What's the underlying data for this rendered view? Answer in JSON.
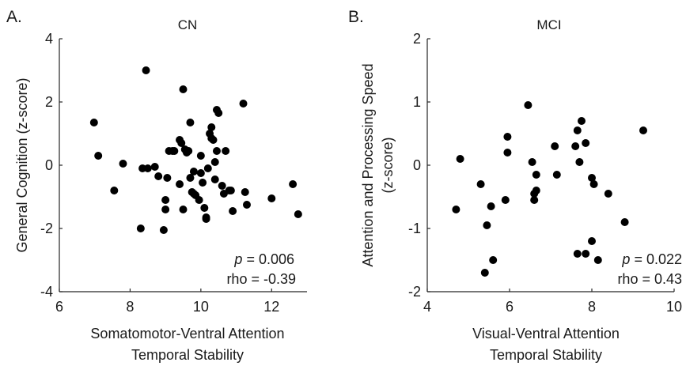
{
  "chart_data": [
    {
      "type": "scatter",
      "panel_label": "A.",
      "title": "CN",
      "xlabel_lines": [
        "Somatomotor-Ventral Attention",
        "Temporal Stability"
      ],
      "ylabel_lines": [
        "General Cognition (z-score)"
      ],
      "xlim": [
        6,
        13
      ],
      "ylim": [
        -4,
        4
      ],
      "xticks": [
        6,
        8,
        10,
        12
      ],
      "yticks": [
        -4,
        -2,
        0,
        2,
        4
      ],
      "xtick_labels": [
        "6",
        "8",
        "10",
        "12"
      ],
      "ytick_labels": [
        "-4",
        "-2",
        "0",
        "2",
        "4"
      ],
      "stat_p_symbol": "p",
      "stat_p_value": " = 0.006",
      "stat_rho": "rho = -0.39",
      "grid": false,
      "x": [
        6.98,
        7.1,
        7.55,
        7.8,
        8.3,
        8.35,
        8.45,
        8.5,
        8.7,
        8.8,
        8.95,
        9.0,
        9.0,
        9.05,
        9.1,
        9.2,
        9.25,
        9.4,
        9.4,
        9.45,
        9.5,
        9.5,
        9.55,
        9.6,
        9.65,
        9.7,
        9.7,
        9.75,
        9.8,
        9.8,
        9.85,
        9.95,
        10.0,
        10.0,
        10.05,
        10.1,
        10.15,
        10.15,
        10.2,
        10.25,
        10.3,
        10.3,
        10.35,
        10.4,
        10.4,
        10.45,
        10.45,
        10.5,
        10.6,
        10.65,
        10.7,
        10.8,
        10.85,
        10.9,
        11.2,
        11.25,
        11.3,
        12.0,
        12.6,
        12.75
      ],
      "y": [
        1.35,
        0.3,
        -0.8,
        0.05,
        -2.0,
        -0.1,
        3.0,
        -0.1,
        -0.05,
        -0.35,
        -2.05,
        -1.4,
        -1.1,
        -0.4,
        0.45,
        0.45,
        0.45,
        0.8,
        -0.6,
        0.7,
        2.4,
        -1.4,
        0.5,
        0.4,
        0.45,
        1.35,
        -0.4,
        -0.85,
        -0.9,
        -0.2,
        -0.95,
        -1.1,
        -0.25,
        0.3,
        -0.55,
        -1.35,
        -1.7,
        -1.65,
        -0.1,
        1.0,
        0.85,
        1.2,
        0.8,
        -0.45,
        0.1,
        1.75,
        0.45,
        1.65,
        -0.65,
        -0.9,
        0.45,
        -0.8,
        -0.8,
        -1.45,
        1.95,
        -0.85,
        -1.25,
        -1.05,
        -0.6,
        -1.55
      ]
    },
    {
      "type": "scatter",
      "panel_label": "B.",
      "title": "MCI",
      "xlabel_lines": [
        "Visual-Ventral Attention",
        "Temporal Stability"
      ],
      "ylabel_lines": [
        "Attention and Processing Speed",
        "(z-score)"
      ],
      "xlim": [
        4,
        10
      ],
      "ylim": [
        -2,
        2
      ],
      "xticks": [
        4,
        6,
        8,
        10
      ],
      "yticks": [
        -2,
        -1,
        0,
        1,
        2
      ],
      "xtick_labels": [
        "4",
        "6",
        "8",
        "10"
      ],
      "ytick_labels": [
        "-2",
        "-1",
        "0",
        "1",
        "2"
      ],
      "stat_p_symbol": "p",
      "stat_p_value": " = 0.022",
      "stat_rho": "rho = 0.43",
      "grid": false,
      "x": [
        4.7,
        4.8,
        5.3,
        5.4,
        5.45,
        5.55,
        5.6,
        5.9,
        5.95,
        5.95,
        6.45,
        6.55,
        6.6,
        6.6,
        6.65,
        6.65,
        7.1,
        7.15,
        7.6,
        7.65,
        7.65,
        7.7,
        7.75,
        7.85,
        7.85,
        8.0,
        8.0,
        8.05,
        8.15,
        8.4,
        8.8,
        9.25
      ],
      "y": [
        -0.7,
        0.1,
        -0.3,
        -1.7,
        -0.95,
        -0.65,
        -1.5,
        -0.55,
        0.2,
        0.45,
        0.95,
        0.05,
        -0.45,
        -0.55,
        -0.15,
        -0.4,
        0.3,
        -0.15,
        0.3,
        0.55,
        -1.4,
        0.05,
        0.7,
        0.35,
        -1.4,
        -1.2,
        -0.2,
        -0.3,
        -1.5,
        -0.45,
        -0.9,
        0.55
      ]
    }
  ]
}
